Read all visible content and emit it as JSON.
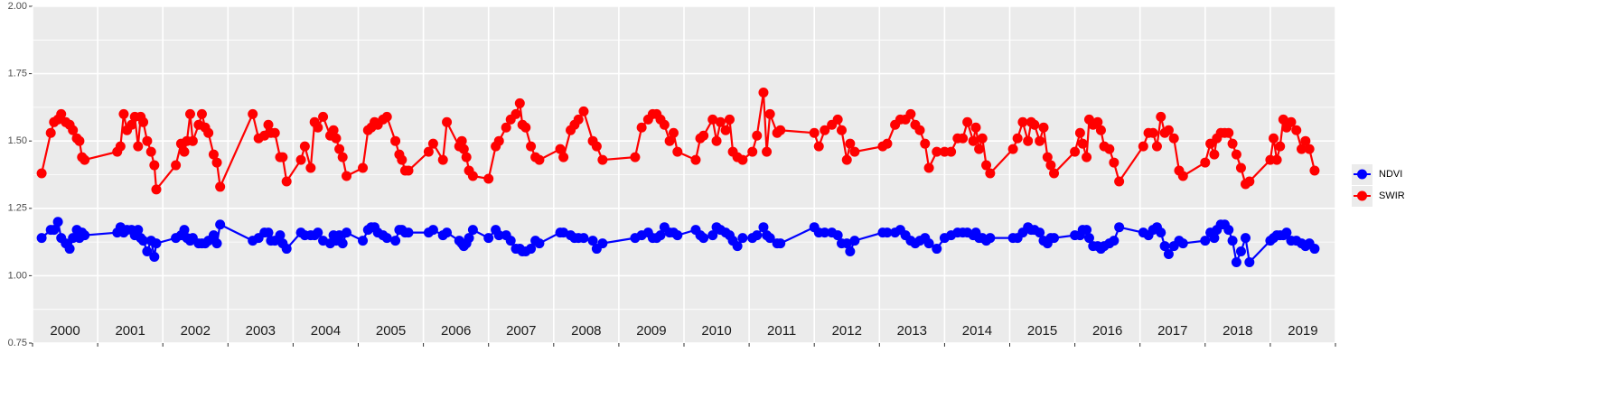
{
  "chart_data": {
    "type": "line",
    "x": [
      2000.14,
      2000.28,
      2000.33,
      2000.39,
      2000.44,
      2000.51,
      2000.57,
      2000.62,
      2000.68,
      2000.72,
      2000.76,
      2000.8,
      2001.3,
      2001.35,
      2001.4,
      2001.45,
      2001.52,
      2001.57,
      2001.62,
      2001.66,
      2001.7,
      2001.76,
      2001.82,
      2001.87,
      2001.9,
      2002.2,
      2002.28,
      2002.33,
      2002.37,
      2002.42,
      2002.46,
      2002.55,
      2002.6,
      2002.65,
      2002.7,
      2002.78,
      2002.83,
      2002.88,
      2003.38,
      2003.47,
      2003.56,
      2003.62,
      2003.66,
      2003.72,
      2003.8,
      2003.84,
      2003.9,
      2004.12,
      2004.18,
      2004.27,
      2004.33,
      2004.38,
      2004.46,
      2004.57,
      2004.62,
      2004.66,
      2004.71,
      2004.76,
      2004.82,
      2005.07,
      2005.15,
      2005.2,
      2005.25,
      2005.3,
      2005.38,
      2005.44,
      2005.57,
      2005.63,
      2005.67,
      2005.72,
      2005.77,
      2006.08,
      2006.15,
      2006.3,
      2006.36,
      2006.55,
      2006.59,
      2006.62,
      2006.66,
      2006.7,
      2006.76,
      2007.0,
      2007.11,
      2007.16,
      2007.27,
      2007.34,
      2007.42,
      2007.48,
      2007.52,
      2007.57,
      2007.65,
      2007.72,
      2007.78,
      2008.1,
      2008.15,
      2008.26,
      2008.32,
      2008.38,
      2008.46,
      2008.6,
      2008.66,
      2008.75,
      2009.25,
      2009.35,
      2009.45,
      2009.52,
      2009.58,
      2009.64,
      2009.7,
      2009.78,
      2009.84,
      2009.9,
      2010.18,
      2010.25,
      2010.3,
      2010.44,
      2010.5,
      2010.56,
      2010.64,
      2010.7,
      2010.75,
      2010.82,
      2010.9,
      2011.05,
      2011.12,
      2011.22,
      2011.27,
      2011.32,
      2011.43,
      2011.48,
      2012.0,
      2012.07,
      2012.16,
      2012.27,
      2012.36,
      2012.42,
      2012.5,
      2012.55,
      2012.62,
      2013.05,
      2013.12,
      2013.24,
      2013.32,
      2013.4,
      2013.48,
      2013.55,
      2013.62,
      2013.7,
      2013.76,
      2013.88,
      2014.0,
      2014.1,
      2014.2,
      2014.28,
      2014.35,
      2014.44,
      2014.48,
      2014.53,
      2014.58,
      2014.64,
      2014.7,
      2015.05,
      2015.12,
      2015.2,
      2015.28,
      2015.33,
      2015.38,
      2015.46,
      2015.52,
      2015.58,
      2015.63,
      2015.68,
      2016.0,
      2016.08,
      2016.12,
      2016.18,
      2016.22,
      2016.28,
      2016.35,
      2016.4,
      2016.45,
      2016.53,
      2016.6,
      2016.68,
      2017.05,
      2017.13,
      2017.2,
      2017.26,
      2017.32,
      2017.38,
      2017.44,
      2017.52,
      2017.6,
      2017.66,
      2018.0,
      2018.08,
      2018.14,
      2018.18,
      2018.24,
      2018.3,
      2018.36,
      2018.42,
      2018.48,
      2018.55,
      2018.62,
      2018.68,
      2019.0,
      2019.05,
      2019.1,
      2019.15,
      2019.2,
      2019.25,
      2019.32,
      2019.4,
      2019.48,
      2019.54,
      2019.6,
      2019.68
    ],
    "series": [
      {
        "name": "NDVI",
        "color": "#0000ff",
        "values": [
          1.14,
          1.17,
          1.17,
          1.2,
          1.14,
          1.12,
          1.1,
          1.14,
          1.17,
          1.14,
          1.16,
          1.15,
          1.16,
          1.18,
          1.16,
          1.17,
          1.17,
          1.15,
          1.17,
          1.14,
          1.13,
          1.09,
          1.13,
          1.07,
          1.12,
          1.14,
          1.15,
          1.17,
          1.14,
          1.13,
          1.14,
          1.12,
          1.12,
          1.12,
          1.13,
          1.15,
          1.12,
          1.19,
          1.13,
          1.14,
          1.16,
          1.16,
          1.13,
          1.13,
          1.15,
          1.12,
          1.1,
          1.16,
          1.15,
          1.15,
          1.15,
          1.16,
          1.13,
          1.12,
          1.15,
          1.13,
          1.15,
          1.12,
          1.16,
          1.13,
          1.17,
          1.18,
          1.18,
          1.16,
          1.15,
          1.14,
          1.13,
          1.17,
          1.17,
          1.16,
          1.16,
          1.16,
          1.17,
          1.15,
          1.16,
          1.13,
          1.12,
          1.11,
          1.12,
          1.14,
          1.17,
          1.14,
          1.17,
          1.15,
          1.15,
          1.13,
          1.1,
          1.1,
          1.09,
          1.09,
          1.1,
          1.13,
          1.12,
          1.16,
          1.16,
          1.15,
          1.14,
          1.14,
          1.14,
          1.13,
          1.1,
          1.12,
          1.14,
          1.15,
          1.16,
          1.14,
          1.14,
          1.15,
          1.18,
          1.16,
          1.16,
          1.15,
          1.17,
          1.15,
          1.14,
          1.15,
          1.18,
          1.17,
          1.16,
          1.15,
          1.13,
          1.11,
          1.14,
          1.14,
          1.15,
          1.18,
          1.15,
          1.14,
          1.12,
          1.12,
          1.18,
          1.16,
          1.16,
          1.16,
          1.15,
          1.12,
          1.12,
          1.09,
          1.13,
          1.16,
          1.16,
          1.16,
          1.17,
          1.15,
          1.13,
          1.12,
          1.13,
          1.14,
          1.12,
          1.1,
          1.14,
          1.15,
          1.16,
          1.16,
          1.16,
          1.15,
          1.16,
          1.14,
          1.14,
          1.13,
          1.14,
          1.14,
          1.14,
          1.16,
          1.18,
          1.17,
          1.17,
          1.16,
          1.13,
          1.12,
          1.14,
          1.14,
          1.15,
          1.15,
          1.17,
          1.17,
          1.14,
          1.11,
          1.11,
          1.1,
          1.11,
          1.12,
          1.13,
          1.18,
          1.16,
          1.15,
          1.17,
          1.18,
          1.16,
          1.11,
          1.08,
          1.11,
          1.13,
          1.12,
          1.13,
          1.16,
          1.14,
          1.17,
          1.19,
          1.19,
          1.17,
          1.13,
          1.05,
          1.09,
          1.14,
          1.05,
          1.13,
          1.14,
          1.15,
          1.15,
          1.15,
          1.16,
          1.13,
          1.13,
          1.12,
          1.11,
          1.12,
          1.1
        ]
      },
      {
        "name": "SWIR",
        "color": "#ff0000",
        "values": [
          1.38,
          1.53,
          1.57,
          1.58,
          1.6,
          1.57,
          1.56,
          1.54,
          1.51,
          1.5,
          1.44,
          1.43,
          1.46,
          1.48,
          1.6,
          1.54,
          1.56,
          1.59,
          1.48,
          1.59,
          1.57,
          1.5,
          1.46,
          1.41,
          1.32,
          1.41,
          1.49,
          1.46,
          1.5,
          1.6,
          1.5,
          1.56,
          1.6,
          1.55,
          1.53,
          1.45,
          1.42,
          1.33,
          1.6,
          1.51,
          1.52,
          1.56,
          1.53,
          1.53,
          1.44,
          1.44,
          1.35,
          1.43,
          1.48,
          1.4,
          1.57,
          1.55,
          1.59,
          1.52,
          1.54,
          1.51,
          1.47,
          1.44,
          1.37,
          1.4,
          1.54,
          1.55,
          1.57,
          1.56,
          1.58,
          1.59,
          1.5,
          1.45,
          1.43,
          1.39,
          1.39,
          1.46,
          1.49,
          1.43,
          1.57,
          1.48,
          1.5,
          1.47,
          1.44,
          1.39,
          1.37,
          1.36,
          1.48,
          1.5,
          1.55,
          1.58,
          1.6,
          1.64,
          1.56,
          1.55,
          1.48,
          1.44,
          1.43,
          1.47,
          1.44,
          1.54,
          1.56,
          1.58,
          1.61,
          1.5,
          1.48,
          1.43,
          1.44,
          1.55,
          1.58,
          1.6,
          1.6,
          1.58,
          1.56,
          1.5,
          1.53,
          1.46,
          1.43,
          1.51,
          1.52,
          1.58,
          1.5,
          1.57,
          1.54,
          1.58,
          1.46,
          1.44,
          1.43,
          1.46,
          1.52,
          1.68,
          1.46,
          1.6,
          1.53,
          1.54,
          1.53,
          1.48,
          1.54,
          1.56,
          1.58,
          1.54,
          1.43,
          1.49,
          1.46,
          1.48,
          1.49,
          1.56,
          1.58,
          1.58,
          1.6,
          1.56,
          1.54,
          1.49,
          1.4,
          1.46,
          1.46,
          1.46,
          1.51,
          1.51,
          1.57,
          1.5,
          1.55,
          1.47,
          1.51,
          1.41,
          1.38,
          1.47,
          1.51,
          1.57,
          1.5,
          1.57,
          1.56,
          1.5,
          1.55,
          1.44,
          1.41,
          1.38,
          1.46,
          1.53,
          1.49,
          1.44,
          1.58,
          1.56,
          1.57,
          1.54,
          1.48,
          1.47,
          1.42,
          1.35,
          1.48,
          1.53,
          1.53,
          1.48,
          1.59,
          1.53,
          1.54,
          1.51,
          1.39,
          1.37,
          1.42,
          1.49,
          1.45,
          1.51,
          1.53,
          1.53,
          1.53,
          1.49,
          1.45,
          1.4,
          1.34,
          1.35,
          1.43,
          1.51,
          1.43,
          1.48,
          1.58,
          1.55,
          1.57,
          1.54,
          1.47,
          1.5,
          1.47,
          1.39
        ]
      }
    ],
    "xlim": [
      2000,
      2020
    ],
    "xgrid": [
      2000,
      2001,
      2002,
      2003,
      2004,
      2005,
      2006,
      2007,
      2008,
      2009,
      2010,
      2011,
      2012,
      2013,
      2014,
      2015,
      2016,
      2017,
      2018,
      2019,
      2020
    ],
    "xticks": [
      {
        "value": 2000.5,
        "label": "2000"
      },
      {
        "value": 2001.5,
        "label": "2001"
      },
      {
        "value": 2002.5,
        "label": "2002"
      },
      {
        "value": 2003.5,
        "label": "2003"
      },
      {
        "value": 2004.5,
        "label": "2004"
      },
      {
        "value": 2005.5,
        "label": "2005"
      },
      {
        "value": 2006.5,
        "label": "2006"
      },
      {
        "value": 2007.5,
        "label": "2007"
      },
      {
        "value": 2008.5,
        "label": "2008"
      },
      {
        "value": 2009.5,
        "label": "2009"
      },
      {
        "value": 2010.5,
        "label": "2010"
      },
      {
        "value": 2011.5,
        "label": "2011"
      },
      {
        "value": 2012.5,
        "label": "2012"
      },
      {
        "value": 2013.5,
        "label": "2013"
      },
      {
        "value": 2014.5,
        "label": "2014"
      },
      {
        "value": 2015.5,
        "label": "2015"
      },
      {
        "value": 2016.5,
        "label": "2016"
      },
      {
        "value": 2017.5,
        "label": "2017"
      },
      {
        "value": 2018.5,
        "label": "2018"
      },
      {
        "value": 2019.5,
        "label": "2019"
      }
    ],
    "ylim": [
      0.75,
      2
    ],
    "yticks": [
      0.75,
      {
        "value": 1,
        "label": "1.00"
      },
      1.25,
      {
        "value": 1.5,
        "label": "1.50"
      },
      1.75,
      {
        "value": 2,
        "label": "2.00"
      }
    ],
    "grid": true,
    "legend": "right"
  }
}
